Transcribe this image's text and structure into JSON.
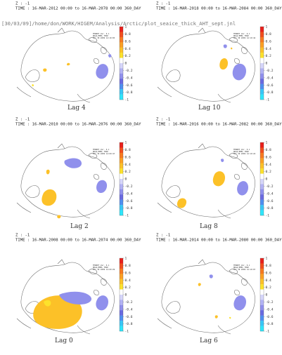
{
  "path_line": "[30/03/09]/home/don/WORK/HIGEM/Analysis/Arctic/plot_seaice_thick_AHT_sept.jnl",
  "colorbar": {
    "ticks": [
      "1",
      "0.8",
      "0.6",
      "0.4",
      "0.2",
      "0",
      "-0.2",
      "-0.4",
      "-0.6",
      "-0.8",
      "-1"
    ],
    "colors": [
      "#e8201c",
      "#f14e1e",
      "#f77a21",
      "#fb9f24",
      "#fcc128",
      "#fde22b",
      "#ffffff",
      "#d6d6fa",
      "#b3b3f4",
      "#9090ec",
      "#6a6ae0",
      "#4f8ff0",
      "#39c6f7",
      "#2ee6fb"
    ]
  },
  "panels": [
    {
      "z": "Z : -1",
      "time": "TIME : 16-MAR-2012 00:00 to 16-MAR-2078 00:00 360_DAY",
      "lag": "Lag 4",
      "stamp": [
        "FERRET Ver. 6.1",
        "NOAA/PMEL TMAP",
        "Mar 30 2009 14:10:05"
      ]
    },
    {
      "z": "Z : -1",
      "time": "TIME : 16-MAR-2018 00:00 to 16-MAR-2084 00:00 360_DAY",
      "lag": "Lag 10",
      "stamp": [
        "FERRET Ver. 6.1",
        "NOAA/PMEL TMAP",
        "Mar 30 2009 14:10:42"
      ]
    },
    {
      "z": "Z : -1",
      "time": "TIME : 16-MAR-2010 00:00 to 16-MAR-2076 00:00 360_DAY",
      "lag": "Lag 2",
      "stamp": [
        "FERRET Ver. 6.1",
        "NOAA/PMEL TMAP",
        "Mar 30 2009 14:09:47"
      ]
    },
    {
      "z": "Z : -1",
      "time": "TIME : 16-MAR-2016 00:00 to 16-MAR-2082 00:00 360_DAY",
      "lag": "Lag 8",
      "stamp": [
        "FERRET Ver. 6.1",
        "NOAA/PMEL TMAP",
        "Mar 30 2009 14:10:24"
      ]
    },
    {
      "z": "Z : -1",
      "time": "TIME : 16-MAR-2008 00:00 to 16-MAR-2074 00:00 360_DAY",
      "lag": "Lag 0",
      "stamp": [
        "FERRET Ver. 6.1",
        "NOAA/PMEL TMAP",
        "Mar 30 2009 14:09:29"
      ]
    },
    {
      "z": "Z : -1",
      "time": "TIME : 16-MAR-2014 00:00 to 16-MAR-2080 00:00 360_DAY",
      "lag": "Lag 6",
      "stamp": [
        "FERRET Ver. 6.1",
        "NOAA/PMEL TMAP",
        "Mar 30 2009 14:10:07"
      ]
    }
  ],
  "chart_data": {
    "type": "heatmap",
    "colorbar_range": [
      -1,
      1
    ],
    "panels": [
      {
        "lag": "Lag 4",
        "features": [
          {
            "shape": "blob-small-scattered",
            "sign": "positive"
          },
          {
            "shape": "blob-east",
            "sign": "negative"
          }
        ]
      },
      {
        "lag": "Lag 10",
        "features": [
          {
            "shape": "blob-center",
            "sign": "positive"
          },
          {
            "shape": "blob-east",
            "sign": "negative"
          }
        ]
      },
      {
        "lag": "Lag 2",
        "features": [
          {
            "shape": "blob-southwest",
            "sign": "positive"
          },
          {
            "shape": "blob-northeast",
            "sign": "negative"
          }
        ]
      },
      {
        "lag": "Lag 8",
        "features": [
          {
            "shape": "blob-center",
            "sign": "positive"
          },
          {
            "shape": "blob-southwest",
            "sign": "positive"
          },
          {
            "shape": "blob-east",
            "sign": "negative"
          }
        ]
      },
      {
        "lag": "Lag 0",
        "features": [
          {
            "shape": "blob-large-center",
            "sign": "positive"
          },
          {
            "shape": "blob-east",
            "sign": "negative"
          }
        ]
      },
      {
        "lag": "Lag 6",
        "features": [
          {
            "shape": "blob-small-scattered",
            "sign": "positive"
          },
          {
            "shape": "blob-east",
            "sign": "negative"
          }
        ]
      }
    ]
  }
}
